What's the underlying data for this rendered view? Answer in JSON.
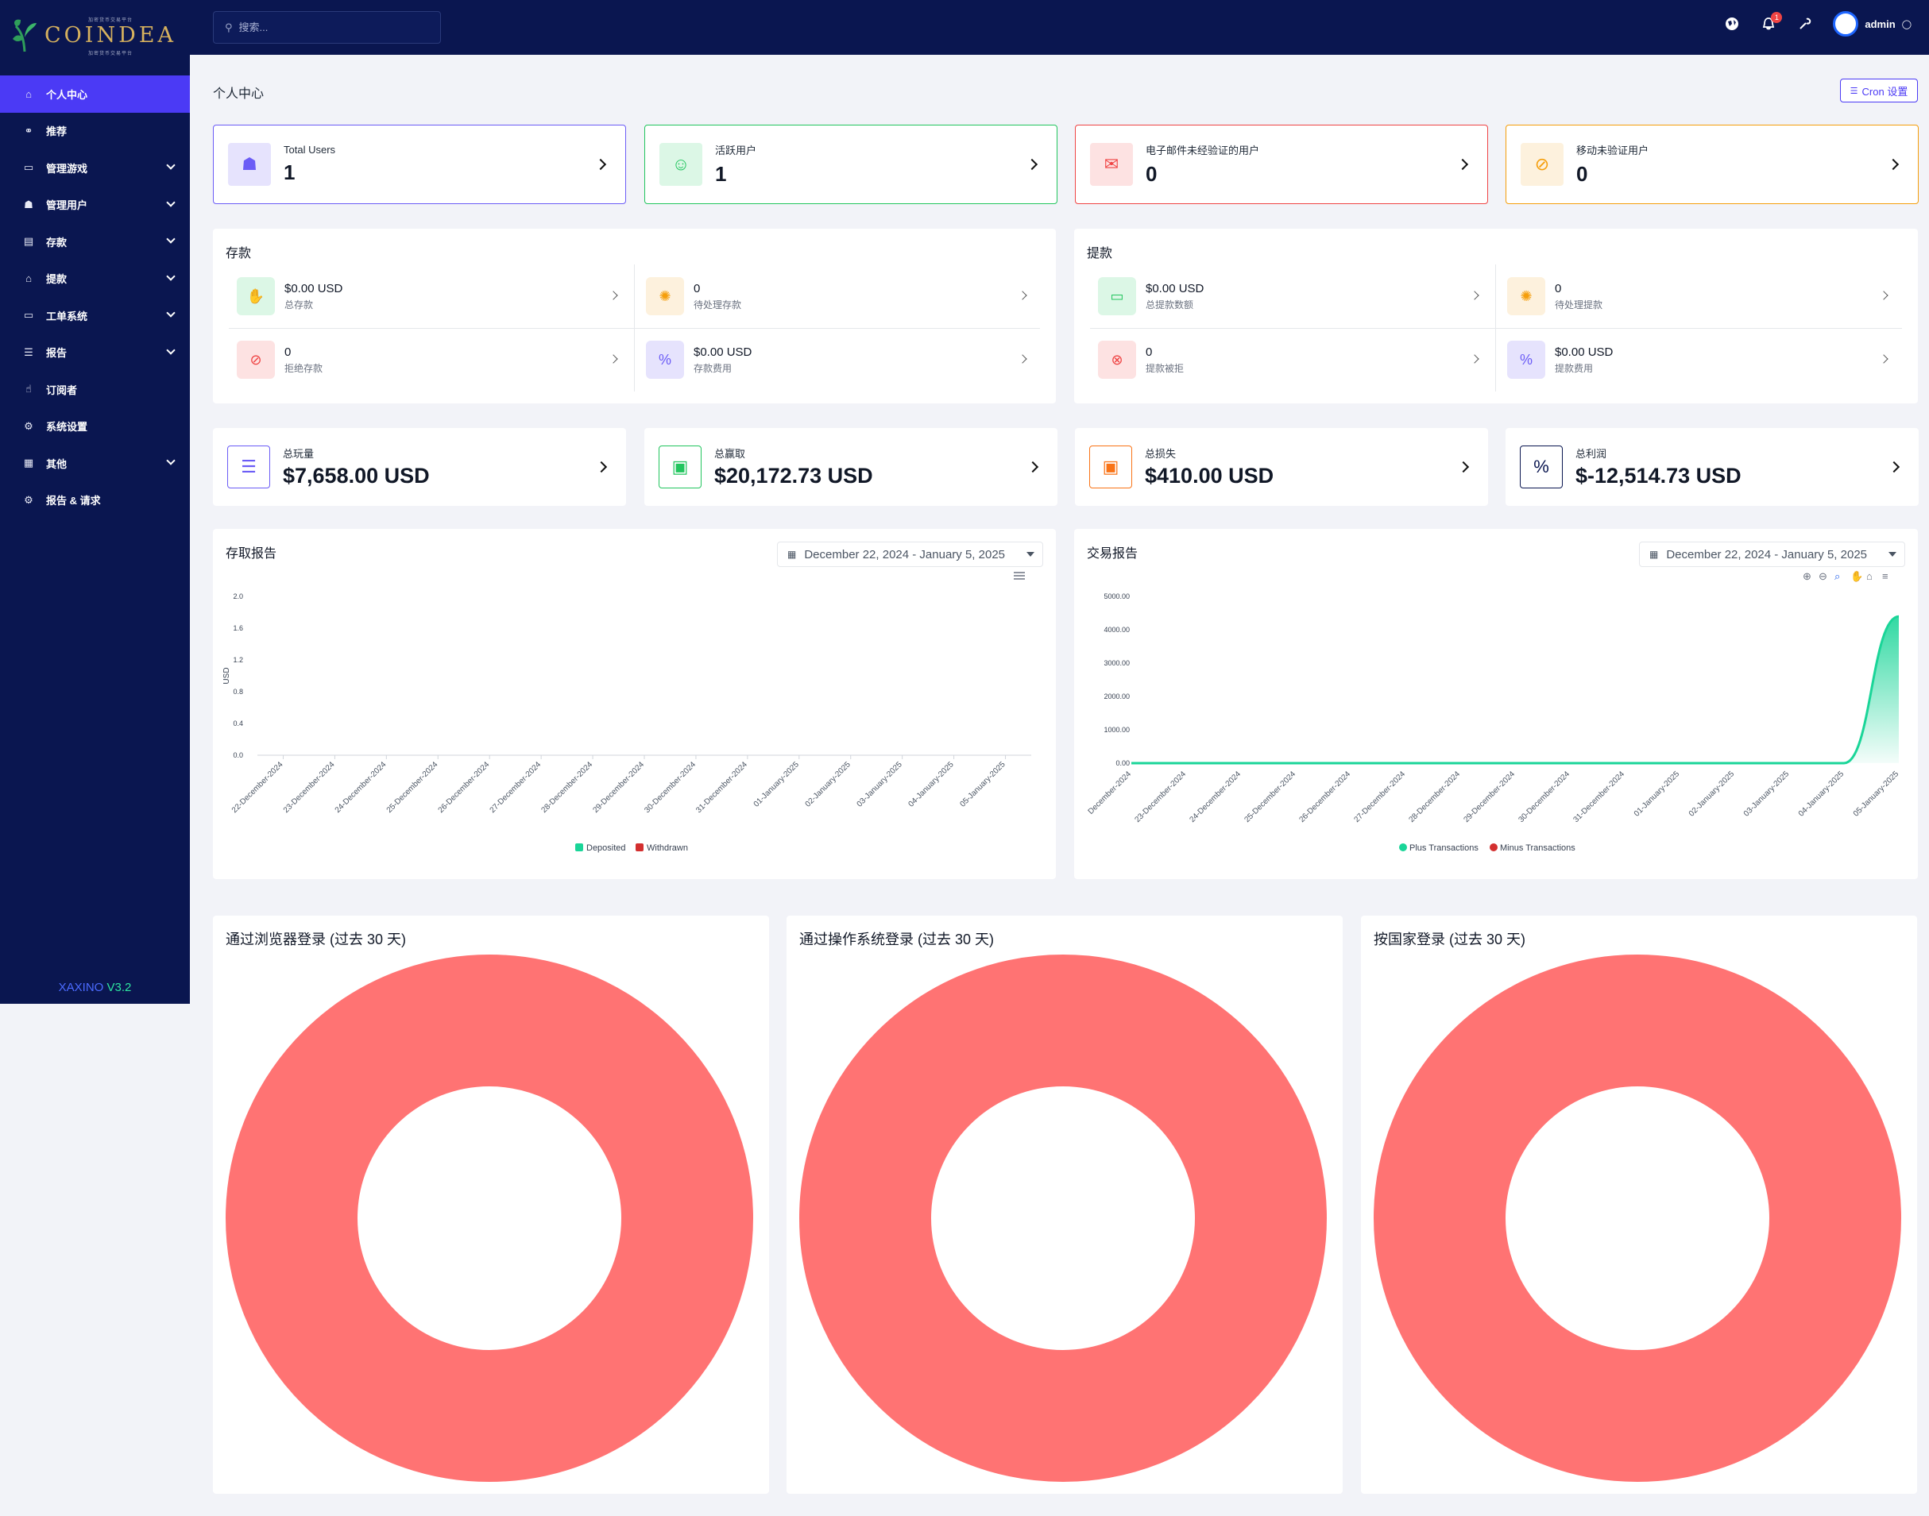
{
  "brand": {
    "name": "COINDEA",
    "sub_top": "加密货币交易平台",
    "sub_bottom": "加密货币交易平台"
  },
  "sidebar": {
    "items": [
      {
        "label": "个人中心",
        "icon": "home-icon",
        "active": true,
        "chevron": false
      },
      {
        "label": "推荐",
        "icon": "link-icon",
        "chevron": false
      },
      {
        "label": "管理游戏",
        "icon": "gamepad-icon",
        "chevron": true
      },
      {
        "label": "管理用户",
        "icon": "users-icon",
        "chevron": true
      },
      {
        "label": "存款",
        "icon": "deposit-icon",
        "chevron": true
      },
      {
        "label": "提款",
        "icon": "bank-icon",
        "chevron": true
      },
      {
        "label": "工单系统",
        "icon": "ticket-icon",
        "chevron": true
      },
      {
        "label": "报告",
        "icon": "list-icon",
        "chevron": true
      },
      {
        "label": "订阅者",
        "icon": "thumbs-up-icon",
        "chevron": false
      },
      {
        "label": "系统设置",
        "icon": "gear-icon",
        "chevron": false
      },
      {
        "label": "其他",
        "icon": "grid-icon",
        "chevron": true
      },
      {
        "label": "报告 & 请求",
        "icon": "bug-icon",
        "chevron": false
      }
    ],
    "version_brand": "XAXINO",
    "version": "V3.2"
  },
  "topbar": {
    "search_placeholder": "搜索...",
    "user": "admin",
    "notification_count": "1"
  },
  "page": {
    "title": "个人中心",
    "cron_button": "Cron 设置"
  },
  "stats": [
    {
      "label": "Total Users",
      "value": "1",
      "color": "#6b5cf6",
      "bg": "#e6e3fd",
      "icon": "users-icon"
    },
    {
      "label": "活跃用户",
      "value": "1",
      "color": "#22c55e",
      "bg": "#dcf7e6",
      "icon": "user-check-icon"
    },
    {
      "label": "电子邮件未经验证的用户",
      "value": "0",
      "color": "#ef4444",
      "bg": "#fde2e2",
      "icon": "envelope-icon"
    },
    {
      "label": "移动未验证用户",
      "value": "0",
      "color": "#f59e0b",
      "bg": "#fdf1dd",
      "icon": "mobile-off-icon"
    }
  ],
  "deposit": {
    "title": "存款",
    "items": [
      {
        "value": "$0.00 USD",
        "label": "总存款",
        "color": "#22c55e",
        "bg": "#dcf7e6",
        "icon": "hand-money-icon"
      },
      {
        "value": "0",
        "label": "待处理存款",
        "color": "#f59e0b",
        "bg": "#fdf1dd",
        "icon": "spinner-icon"
      },
      {
        "value": "0",
        "label": "拒绝存款",
        "color": "#ef4444",
        "bg": "#fde2e2",
        "icon": "ban-icon"
      },
      {
        "value": "$0.00 USD",
        "label": "存款费用",
        "color": "#6b5cf6",
        "bg": "#e6e3fd",
        "icon": "percent-icon"
      }
    ]
  },
  "withdraw": {
    "title": "提款",
    "items": [
      {
        "value": "$0.00 USD",
        "label": "总提款数额",
        "color": "#22c55e",
        "bg": "#dcf7e6",
        "icon": "card-icon"
      },
      {
        "value": "0",
        "label": "待处理提款",
        "color": "#f59e0b",
        "bg": "#fdf1dd",
        "icon": "spinner-icon"
      },
      {
        "value": "0",
        "label": "提款被拒",
        "color": "#ef4444",
        "bg": "#fde2e2",
        "icon": "x-circle-icon"
      },
      {
        "value": "$0.00 USD",
        "label": "提款费用",
        "color": "#6b5cf6",
        "bg": "#e6e3fd",
        "icon": "percent-icon"
      }
    ]
  },
  "totals": [
    {
      "label": "总玩量",
      "value": "$7,658.00 USD",
      "color": "#6b5cf6",
      "icon": "list-icon"
    },
    {
      "label": "总赢取",
      "value": "$20,172.73 USD",
      "color": "#22c55e",
      "icon": "money-icon"
    },
    {
      "label": "总损失",
      "value": "$410.00 USD",
      "color": "#f97316",
      "icon": "money-loss-icon"
    },
    {
      "label": "总利润",
      "value": "$-12,514.73 USD",
      "color": "#0a1650",
      "icon": "percent-box-icon"
    }
  ],
  "reports": {
    "deposit_title": "存取报告",
    "trx_title": "交易报告",
    "date_range": "December 22, 2024 - January 5, 2025"
  },
  "chart_data": [
    {
      "type": "bar",
      "title": "存取报告",
      "ylabel": "USD",
      "ylim": [
        0,
        2.0
      ],
      "yticks": [
        "0.0",
        "0.4",
        "0.8",
        "1.2",
        "1.6",
        "2.0"
      ],
      "categories": [
        "22-December-2024",
        "23-December-2024",
        "24-December-2024",
        "25-December-2024",
        "26-December-2024",
        "27-December-2024",
        "28-December-2024",
        "29-December-2024",
        "30-December-2024",
        "31-December-2024",
        "01-January-2025",
        "02-January-2025",
        "03-January-2025",
        "04-January-2025",
        "05-January-2025"
      ],
      "series": [
        {
          "name": "Deposited",
          "color": "#1ad598",
          "values": [
            0,
            0,
            0,
            0,
            0,
            0,
            0,
            0,
            0,
            0,
            0,
            0,
            0,
            0,
            0
          ]
        },
        {
          "name": "Withdrawn",
          "color": "#d32f2f",
          "values": [
            0,
            0,
            0,
            0,
            0,
            0,
            0,
            0,
            0,
            0,
            0,
            0,
            0,
            0,
            0
          ]
        }
      ]
    },
    {
      "type": "area",
      "title": "交易报告",
      "ylim": [
        0,
        5000
      ],
      "yticks": [
        "0.00",
        "1000.00",
        "2000.00",
        "3000.00",
        "4000.00",
        "5000.00"
      ],
      "categories": [
        "December-2024",
        "23-December-2024",
        "24-December-2024",
        "25-December-2024",
        "26-December-2024",
        "27-December-2024",
        "28-December-2024",
        "29-December-2024",
        "30-December-2024",
        "31-December-2024",
        "01-January-2025",
        "02-January-2025",
        "03-January-2025",
        "04-January-2025",
        "05-January-2025"
      ],
      "series": [
        {
          "name": "Plus Transactions",
          "color": "#1ad598",
          "values": [
            0,
            0,
            0,
            0,
            0,
            0,
            0,
            0,
            0,
            0,
            0,
            0,
            0,
            0,
            4400
          ]
        },
        {
          "name": "Minus Transactions",
          "color": "#d32f2f",
          "values": [
            0,
            0,
            0,
            0,
            0,
            0,
            0,
            0,
            0,
            0,
            0,
            0,
            0,
            0,
            0
          ]
        }
      ]
    },
    {
      "type": "pie",
      "title": "通过浏览器登录 (过去 30 天)",
      "values": [
        100
      ],
      "color": "#ff7373"
    },
    {
      "type": "pie",
      "title": "通过操作系统登录 (过去 30 天)",
      "values": [
        100
      ],
      "color": "#ff7373"
    },
    {
      "type": "pie",
      "title": "按国家登录 (过去 30 天)",
      "values": [
        100
      ],
      "color": "#ff7373"
    }
  ]
}
